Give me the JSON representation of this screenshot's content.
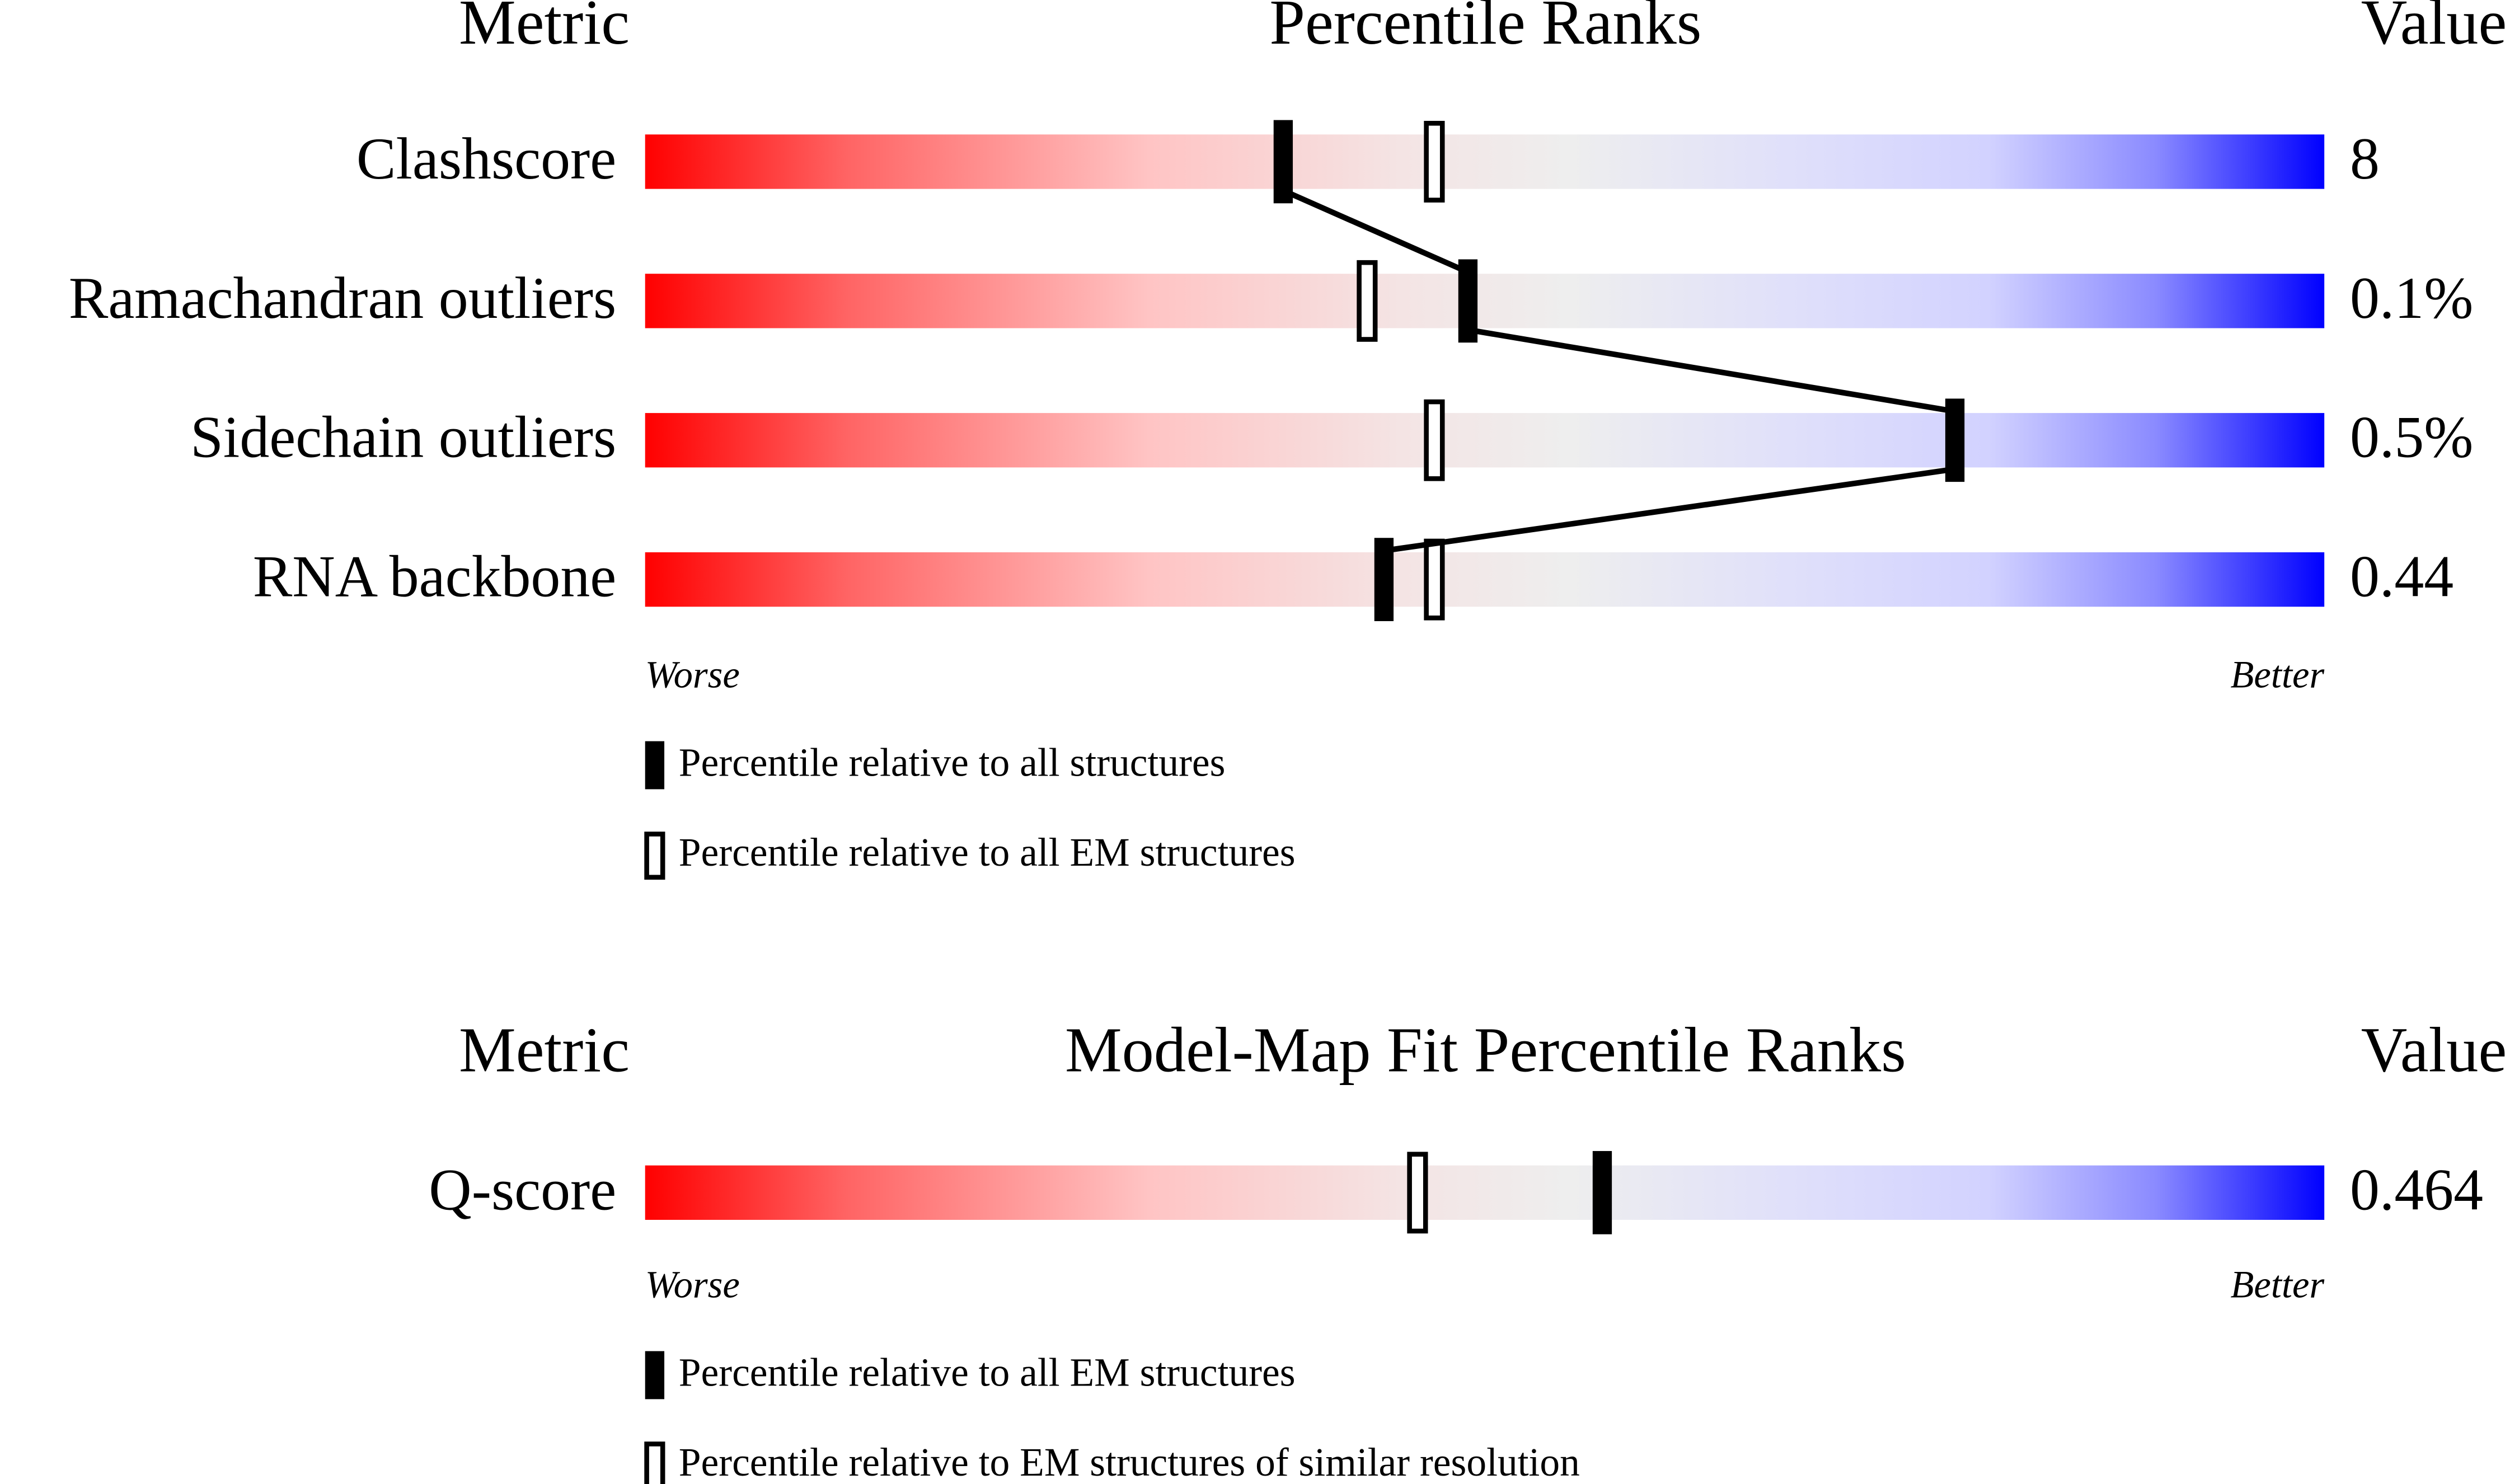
{
  "panels": [
    {
      "headers": {
        "metric": "Metric",
        "title": "Percentile Ranks",
        "value": "Value"
      },
      "rows": [
        {
          "label": "Clashscore",
          "value": "8",
          "filled": 38,
          "open": 47
        },
        {
          "label": "Ramachandran outliers",
          "value": "0.1%",
          "filled": 49,
          "open": 43
        },
        {
          "label": "Sidechain outliers",
          "value": "0.5%",
          "filled": 78,
          "open": 47
        },
        {
          "label": "RNA backbone",
          "value": "0.44",
          "filled": 44,
          "open": 47
        }
      ],
      "worse": "Worse",
      "better": "Better",
      "legend": {
        "filled": "Percentile relative to all structures",
        "open": "Percentile relative to all EM structures"
      }
    },
    {
      "headers": {
        "metric": "Metric",
        "title": "Model-Map Fit Percentile Ranks",
        "value": "Value"
      },
      "rows": [
        {
          "label": "Q-score",
          "value": "0.464",
          "filled": 57,
          "open": 46
        }
      ],
      "worse": "Worse",
      "better": "Better",
      "legend": {
        "filled": "Percentile relative to all EM structures",
        "open": "Percentile relative to EM structures of similar resolution"
      }
    }
  ]
}
